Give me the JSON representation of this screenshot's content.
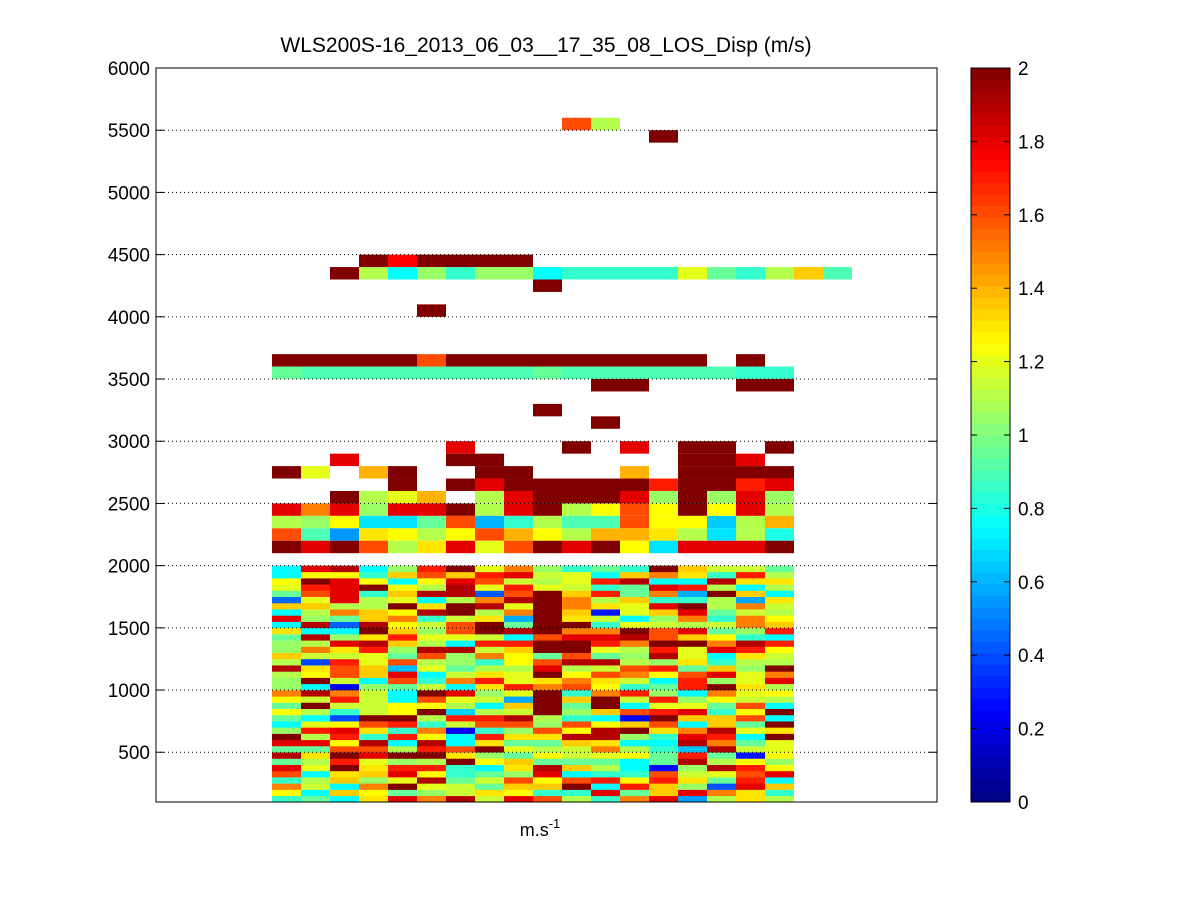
{
  "chart_data": {
    "type": "heatmap",
    "title": "WLS200S-16_2013_06_03__17_35_08_LOS_Disp (m/s)",
    "xlabel_base": "m.s",
    "xlabel_exp": "-1",
    "ylabel": "",
    "ylim": [
      100,
      6000
    ],
    "yticks": [
      500,
      1000,
      1500,
      2000,
      2500,
      3000,
      3500,
      4000,
      4500,
      5000,
      5500,
      6000
    ],
    "grid": "y-dotted",
    "colorbar": {
      "colormap": "jet",
      "range": [
        0,
        2
      ],
      "ticks": [
        0,
        0.2,
        0.4,
        0.6,
        0.8,
        1,
        1.2,
        1.4,
        1.6,
        1.8,
        2
      ],
      "position": "right"
    },
    "n_columns": 18,
    "n_rows": 59,
    "row_height": 100,
    "row_start": 100,
    "seed": 7,
    "base_values": [
      1.1,
      0.8,
      1.2,
      1.5,
      1.0
    ],
    "rows": [
      {
        "y0": 5400,
        "cells": [
          {
            "c": 17,
            "v": 2.0
          }
        ]
      },
      {
        "y0": 5500,
        "cells": [
          {
            "c": 14,
            "v": 1.6
          },
          {
            "c": 15,
            "v": 1.1
          }
        ]
      },
      {
        "y0": 4300,
        "cells": [
          {
            "c": 6,
            "v": 2.0
          },
          {
            "c": 7,
            "v": 1.1
          },
          {
            "c": 8,
            "v": 0.75
          },
          {
            "c": 9,
            "v": 1.05
          },
          {
            "c": 10,
            "v": 0.85
          },
          {
            "c": 11,
            "v": 1.05
          },
          {
            "c": 12,
            "v": 1.05
          },
          {
            "c": 13,
            "v": 0.75
          },
          {
            "c": 14,
            "v": 0.85
          },
          {
            "c": 15,
            "v": 0.85
          },
          {
            "c": 16,
            "v": 0.85
          },
          {
            "c": 17,
            "v": 0.85
          },
          {
            "c": 18,
            "v": 1.2
          },
          {
            "c": 19,
            "v": 0.95
          },
          {
            "c": 20,
            "v": 0.85
          },
          {
            "c": 21,
            "v": 1.1
          },
          {
            "c": 22,
            "v": 1.35
          },
          {
            "c": 23,
            "v": 0.9
          }
        ]
      },
      {
        "y0": 4400,
        "cells": [
          {
            "c": 7,
            "v": 2.0
          },
          {
            "c": 8,
            "v": 1.75
          },
          {
            "c": 9,
            "v": 2.0
          },
          {
            "c": 10,
            "v": 2.0
          },
          {
            "c": 11,
            "v": 2.0
          },
          {
            "c": 12,
            "v": 2.0
          }
        ]
      },
      {
        "y0": 4200,
        "cells": [
          {
            "c": 13,
            "v": 2.0
          }
        ]
      },
      {
        "y0": 4000,
        "cells": [
          {
            "c": 9,
            "v": 2.0
          }
        ]
      },
      {
        "y0": 3600,
        "cells": [
          {
            "c": 4,
            "v": 2.0
          },
          {
            "c": 5,
            "v": 2.0
          },
          {
            "c": 6,
            "v": 2.0
          },
          {
            "c": 7,
            "v": 2.0
          },
          {
            "c": 8,
            "v": 2.0
          },
          {
            "c": 9,
            "v": 1.6
          },
          {
            "c": 10,
            "v": 2.0
          },
          {
            "c": 11,
            "v": 2.0
          },
          {
            "c": 12,
            "v": 2.0
          },
          {
            "c": 13,
            "v": 2.0
          },
          {
            "c": 14,
            "v": 2.0
          },
          {
            "c": 15,
            "v": 2.0
          },
          {
            "c": 16,
            "v": 2.0
          },
          {
            "c": 17,
            "v": 2.0
          },
          {
            "c": 18,
            "v": 2.0
          },
          {
            "c": 20,
            "v": 2.0
          }
        ]
      },
      {
        "y0": 3500,
        "cells": [
          {
            "c": 4,
            "v": 0.95
          },
          {
            "c": 5,
            "v": 0.9
          },
          {
            "c": 6,
            "v": 0.9
          },
          {
            "c": 7,
            "v": 0.9
          },
          {
            "c": 8,
            "v": 0.9
          },
          {
            "c": 9,
            "v": 0.9
          },
          {
            "c": 10,
            "v": 0.9
          },
          {
            "c": 11,
            "v": 0.9
          },
          {
            "c": 12,
            "v": 0.9
          },
          {
            "c": 13,
            "v": 0.95
          },
          {
            "c": 14,
            "v": 0.9
          },
          {
            "c": 15,
            "v": 0.9
          },
          {
            "c": 16,
            "v": 0.9
          },
          {
            "c": 17,
            "v": 0.9
          },
          {
            "c": 18,
            "v": 0.9
          },
          {
            "c": 19,
            "v": 0.9
          },
          {
            "c": 20,
            "v": 0.85
          },
          {
            "c": 21,
            "v": 0.85
          }
        ]
      },
      {
        "y0": 3400,
        "cells": [
          {
            "c": 15,
            "v": 2.0
          },
          {
            "c": 16,
            "v": 2.0
          },
          {
            "c": 20,
            "v": 2.0
          },
          {
            "c": 21,
            "v": 2.0
          }
        ]
      },
      {
        "y0": 3200,
        "cells": [
          {
            "c": 13,
            "v": 2.0
          }
        ]
      },
      {
        "y0": 3100,
        "cells": [
          {
            "c": 15,
            "v": 2.0
          }
        ]
      },
      {
        "y0": 2900,
        "cells": [
          {
            "c": 10,
            "v": 1.8
          },
          {
            "c": 14,
            "v": 2.0
          },
          {
            "c": 16,
            "v": 1.8
          },
          {
            "c": 18,
            "v": 2.0
          },
          {
            "c": 19,
            "v": 2.0
          },
          {
            "c": 21,
            "v": 2.0
          }
        ]
      },
      {
        "y0": 2800,
        "cells": [
          {
            "c": 6,
            "v": 1.8
          },
          {
            "c": 10,
            "v": 2.0
          },
          {
            "c": 11,
            "v": 2.0
          },
          {
            "c": 18,
            "v": 2.0
          },
          {
            "c": 19,
            "v": 2.0
          },
          {
            "c": 20,
            "v": 1.8
          }
        ]
      },
      {
        "y0": 2700,
        "cells": [
          {
            "c": 4,
            "v": 2.0
          },
          {
            "c": 5,
            "v": 1.2
          },
          {
            "c": 7,
            "v": 1.4
          },
          {
            "c": 8,
            "v": 2.0
          },
          {
            "c": 11,
            "v": 2.0
          },
          {
            "c": 12,
            "v": 2.0
          },
          {
            "c": 16,
            "v": 1.4
          },
          {
            "c": 18,
            "v": 2.0
          },
          {
            "c": 19,
            "v": 2.0
          },
          {
            "c": 20,
            "v": 2.0
          },
          {
            "c": 21,
            "v": 2.0
          }
        ]
      },
      {
        "y0": 2600,
        "cells": [
          {
            "c": 8,
            "v": 2.0
          },
          {
            "c": 10,
            "v": 2.0
          },
          {
            "c": 11,
            "v": 1.8
          },
          {
            "c": 12,
            "v": 2.0
          },
          {
            "c": 13,
            "v": 2.0
          },
          {
            "c": 14,
            "v": 2.0
          },
          {
            "c": 15,
            "v": 2.0
          },
          {
            "c": 16,
            "v": 2.0
          },
          {
            "c": 17,
            "v": 1.7
          },
          {
            "c": 18,
            "v": 2.0
          },
          {
            "c": 19,
            "v": 2.0
          },
          {
            "c": 20,
            "v": 1.7
          },
          {
            "c": 21,
            "v": 1.8
          }
        ]
      },
      {
        "y0": 2500,
        "cells": [
          {
            "c": 6,
            "v": 2.0
          },
          {
            "c": 7,
            "v": 1.1
          },
          {
            "c": 8,
            "v": 1.2
          },
          {
            "c": 9,
            "v": 1.4
          },
          {
            "c": 11,
            "v": 1.1
          },
          {
            "c": 12,
            "v": 1.8
          },
          {
            "c": 13,
            "v": 2.0
          },
          {
            "c": 14,
            "v": 2.0
          },
          {
            "c": 15,
            "v": 2.0
          },
          {
            "c": 16,
            "v": 1.8
          },
          {
            "c": 17,
            "v": 1.05
          },
          {
            "c": 18,
            "v": 2.0
          },
          {
            "c": 19,
            "v": 1.05
          },
          {
            "c": 20,
            "v": 1.8
          },
          {
            "c": 21,
            "v": 1.05
          }
        ]
      },
      {
        "y0": 2400,
        "cells": [
          {
            "c": 4,
            "v": 1.8
          },
          {
            "c": 5,
            "v": 1.5
          },
          {
            "c": 6,
            "v": 1.8
          },
          {
            "c": 7,
            "v": 1.05
          },
          {
            "c": 8,
            "v": 1.8
          },
          {
            "c": 9,
            "v": 1.8
          },
          {
            "c": 10,
            "v": 2.0
          },
          {
            "c": 11,
            "v": 1.1
          },
          {
            "c": 12,
            "v": 1.8
          },
          {
            "c": 13,
            "v": 2.0
          },
          {
            "c": 14,
            "v": 1.1
          },
          {
            "c": 15,
            "v": 1.25
          },
          {
            "c": 16,
            "v": 1.6
          },
          {
            "c": 17,
            "v": 1.25
          },
          {
            "c": 18,
            "v": 2.0
          },
          {
            "c": 19,
            "v": 1.25
          },
          {
            "c": 20,
            "v": 1.8
          },
          {
            "c": 21,
            "v": 1.1
          }
        ]
      },
      {
        "y0": 2300,
        "cells": [
          {
            "c": 4,
            "v": 1.1
          },
          {
            "c": 5,
            "v": 1.05
          },
          {
            "c": 6,
            "v": 1.25
          },
          {
            "c": 7,
            "v": 0.7
          },
          {
            "c": 8,
            "v": 0.7
          },
          {
            "c": 9,
            "v": 0.95
          },
          {
            "c": 10,
            "v": 1.6
          },
          {
            "c": 11,
            "v": 0.6
          },
          {
            "c": 12,
            "v": 0.85
          },
          {
            "c": 13,
            "v": 1.1
          },
          {
            "c": 14,
            "v": 0.9
          },
          {
            "c": 15,
            "v": 0.9
          },
          {
            "c": 16,
            "v": 1.6
          },
          {
            "c": 17,
            "v": 1.25
          },
          {
            "c": 18,
            "v": 1.25
          },
          {
            "c": 19,
            "v": 0.65
          },
          {
            "c": 20,
            "v": 1.1
          },
          {
            "c": 21,
            "v": 1.4
          }
        ]
      },
      {
        "y0": 2200,
        "cells": [
          {
            "c": 4,
            "v": 1.6
          },
          {
            "c": 5,
            "v": 0.9
          },
          {
            "c": 6,
            "v": 0.55
          },
          {
            "c": 7,
            "v": 1.3
          },
          {
            "c": 8,
            "v": 1.25
          },
          {
            "c": 9,
            "v": 1.1
          },
          {
            "c": 10,
            "v": 1.25
          },
          {
            "c": 11,
            "v": 1.6
          },
          {
            "c": 12,
            "v": 1.4
          },
          {
            "c": 13,
            "v": 1.25
          },
          {
            "c": 14,
            "v": 1.1
          },
          {
            "c": 15,
            "v": 1.4
          },
          {
            "c": 16,
            "v": 1.4
          },
          {
            "c": 17,
            "v": 1.3
          },
          {
            "c": 18,
            "v": 1.1
          },
          {
            "c": 19,
            "v": 0.7
          },
          {
            "c": 20,
            "v": 1.1
          },
          {
            "c": 21,
            "v": 0.8
          }
        ]
      },
      {
        "y0": 2100,
        "cells": [
          {
            "c": 4,
            "v": 2.0
          },
          {
            "c": 5,
            "v": 1.8
          },
          {
            "c": 6,
            "v": 2.0
          },
          {
            "c": 7,
            "v": 1.6
          },
          {
            "c": 8,
            "v": 1.1
          },
          {
            "c": 9,
            "v": 1.3
          },
          {
            "c": 10,
            "v": 1.8
          },
          {
            "c": 11,
            "v": 1.2
          },
          {
            "c": 12,
            "v": 1.6
          },
          {
            "c": 13,
            "v": 2.0
          },
          {
            "c": 14,
            "v": 1.8
          },
          {
            "c": 15,
            "v": 2.0
          },
          {
            "c": 16,
            "v": 1.25
          },
          {
            "c": 17,
            "v": 0.7
          },
          {
            "c": 18,
            "v": 1.8
          },
          {
            "c": 19,
            "v": 1.8
          },
          {
            "c": 20,
            "v": 1.8
          },
          {
            "c": 21,
            "v": 2.0
          }
        ]
      }
    ],
    "dense_top": 2000,
    "dense_cols": [
      4,
      21
    ],
    "dense_overrides": [
      {
        "col": 13,
        "from": 1300,
        "to": 1800,
        "v": 2.0
      },
      {
        "col": 13,
        "from": 800,
        "to": 1000,
        "v": 2.0
      },
      {
        "col": 10,
        "from": 1600,
        "to": 1700,
        "v": 2.0
      },
      {
        "col": 6,
        "from": 1700,
        "to": 1900,
        "v": 1.8
      }
    ]
  }
}
